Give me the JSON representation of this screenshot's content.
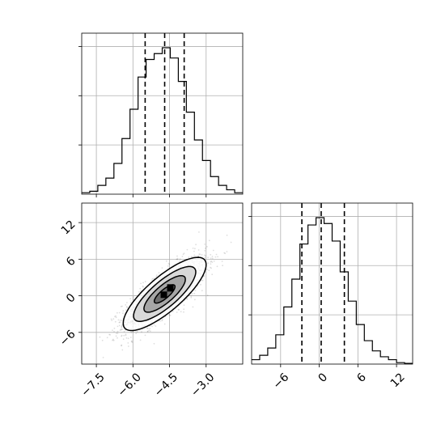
{
  "chart_data": {
    "type": "corner",
    "grid": true,
    "x_hist": {
      "type": "histogram",
      "xlim": [
        -8.1,
        -1.5
      ],
      "bins": 20,
      "counts": [
        0.01,
        0.02,
        0.06,
        0.11,
        0.21,
        0.38,
        0.58,
        0.8,
        0.92,
        0.96,
        1.0,
        0.93,
        0.77,
        0.56,
        0.37,
        0.23,
        0.12,
        0.06,
        0.03,
        0.01
      ],
      "quantile_lines": [
        -5.5,
        -4.7,
        -3.9
      ]
    },
    "y_hist": {
      "type": "histogram",
      "xlim": [
        -10.5,
        14.5
      ],
      "bins": 20,
      "counts": [
        0.03,
        0.06,
        0.11,
        0.2,
        0.39,
        0.58,
        0.82,
        0.95,
        1.0,
        0.96,
        0.84,
        0.63,
        0.43,
        0.27,
        0.16,
        0.09,
        0.05,
        0.03,
        0.01,
        0.005
      ],
      "quantile_lines": [
        -2.7,
        0.3,
        3.9
      ],
      "xticks": [
        "−6",
        "0",
        "6",
        "12"
      ],
      "xtick_values": [
        -6,
        0,
        6,
        12
      ]
    },
    "joint": {
      "type": "scatter-contour",
      "xlim": [
        -8.1,
        -1.5
      ],
      "ylim": [
        -11.2,
        15.2
      ],
      "mean": [
        -4.7,
        0.3
      ],
      "sd": [
        0.85,
        3.0
      ],
      "correlation": 0.8,
      "n_points": 1800,
      "xticks": [
        "−7.5",
        "−6.0",
        "−4.5",
        "−3.0"
      ],
      "xtick_values": [
        -7.5,
        -6.0,
        -4.5,
        -3.0
      ],
      "yticks": [
        "−6",
        "0",
        "6",
        "12"
      ],
      "ytick_values": [
        -6,
        0,
        6,
        12
      ]
    }
  },
  "colors": {
    "line": "#000000",
    "grid": "#b0b0b0",
    "axes": "#000000",
    "points": "#000000"
  }
}
